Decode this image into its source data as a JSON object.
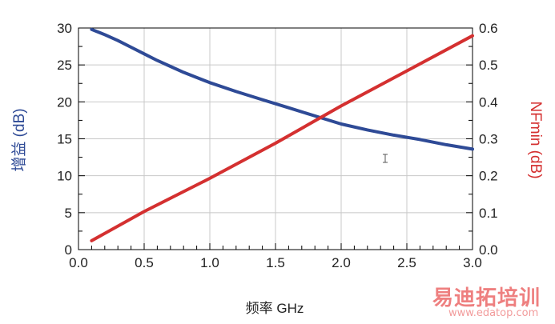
{
  "chart_data": {
    "type": "line",
    "xlabel": "频率 GHz",
    "ylabel_left": "增益 (dB)",
    "ylabel_right": "NFmin (dB)",
    "xlim": [
      0.0,
      3.0
    ],
    "ylim_left": [
      0,
      30
    ],
    "ylim_right": [
      0.0,
      0.6
    ],
    "x_ticks": [
      "0.0",
      "0.5",
      "1.0",
      "1.5",
      "2.0",
      "2.5",
      "3.0"
    ],
    "y_left_ticks": [
      "0",
      "5",
      "10",
      "15",
      "20",
      "25",
      "30"
    ],
    "y_right_ticks": [
      "0.0",
      "0.1",
      "0.2",
      "0.3",
      "0.4",
      "0.5",
      "0.6"
    ],
    "grid": true,
    "series": [
      {
        "axis": "left",
        "color": "#2e4a96",
        "x": [
          0.1,
          0.2,
          0.3,
          0.4,
          0.5,
          0.6,
          0.7,
          0.8,
          0.9,
          1.0,
          1.2,
          1.4,
          1.6,
          1.8,
          2.0,
          2.2,
          2.4,
          2.6,
          2.8,
          3.0
        ],
        "values": [
          29.8,
          29.1,
          28.3,
          27.4,
          26.5,
          25.6,
          24.8,
          24.0,
          23.3,
          22.6,
          21.4,
          20.3,
          19.2,
          18.1,
          17.0,
          16.2,
          15.5,
          14.9,
          14.2,
          13.6
        ]
      },
      {
        "axis": "right",
        "color": "#d43030",
        "x": [
          0.1,
          0.5,
          1.0,
          1.5,
          2.0,
          2.5,
          3.0
        ],
        "values": [
          0.024,
          0.103,
          0.193,
          0.288,
          0.389,
          0.484,
          0.579
        ]
      }
    ]
  },
  "watermark": {
    "brand": "易迪拓培训",
    "url": "www.edatop.com"
  }
}
